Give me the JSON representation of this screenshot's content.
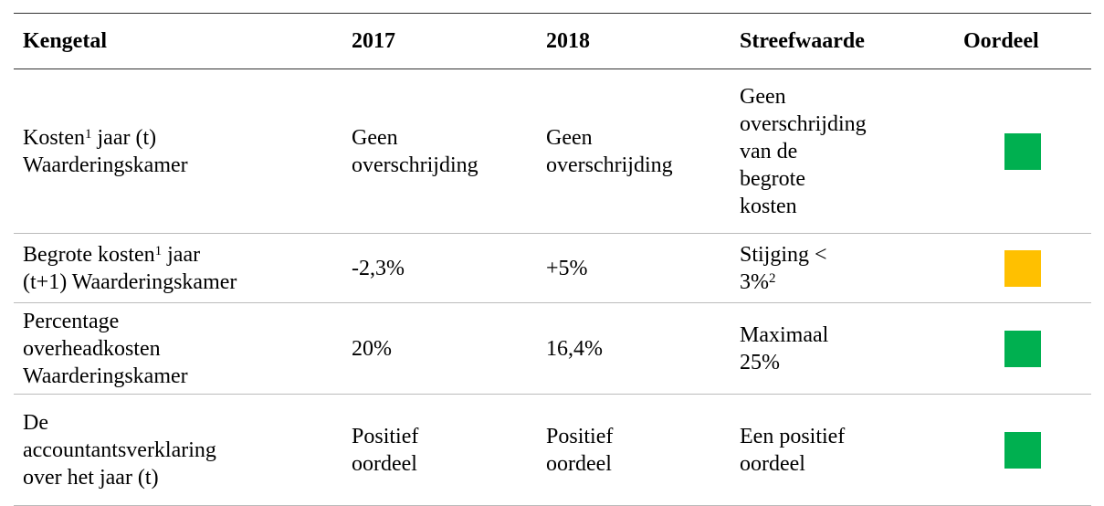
{
  "table": {
    "header": [
      "Kengetal",
      "2017",
      "2018",
      "Streefwaarde",
      "Oordeel"
    ],
    "rows": [
      {
        "cells": [
          [
            [
              {
                "t": "Kosten"
              },
              {
                "sup": "1"
              },
              {
                "t": " jaar (t)"
              }
            ],
            [
              {
                "t": "Waarderingskamer"
              }
            ]
          ],
          [
            [
              {
                "t": "Geen"
              }
            ],
            [
              {
                "t": "overschrijding"
              }
            ]
          ],
          [
            [
              {
                "t": "Geen"
              }
            ],
            [
              {
                "t": "overschrijding"
              }
            ]
          ],
          [
            [
              {
                "t": "Geen"
              }
            ],
            [
              {
                "t": "overschrijding"
              }
            ],
            [
              {
                "t": "van de"
              }
            ],
            [
              {
                "t": "begrote"
              }
            ],
            [
              {
                "t": "kosten"
              }
            ]
          ]
        ],
        "status_color": "#00b050"
      },
      {
        "cells": [
          [
            [
              {
                "t": "Begrote kosten"
              },
              {
                "sup": "1"
              },
              {
                "t": " jaar"
              }
            ],
            [
              {
                "t": "(t+1) Waarderingskamer"
              }
            ]
          ],
          [
            [
              {
                "t": "-2,3%"
              }
            ]
          ],
          [
            [
              {
                "t": "+5%"
              }
            ]
          ],
          [
            [
              {
                "t": "Stijging <"
              }
            ],
            [
              {
                "t": "3%"
              },
              {
                "sup": "2"
              }
            ]
          ]
        ],
        "status_color": "#ffc000"
      },
      {
        "cells": [
          [
            [
              {
                "t": "Percentage"
              }
            ],
            [
              {
                "t": "overheadkosten"
              }
            ],
            [
              {
                "t": "Waarderingskamer"
              }
            ]
          ],
          [
            [
              {
                "t": "20%"
              }
            ]
          ],
          [
            [
              {
                "t": "16,4%"
              }
            ]
          ],
          [
            [
              {
                "t": "Maximaal"
              }
            ],
            [
              {
                "t": "25%"
              }
            ]
          ]
        ],
        "status_color": "#00b050"
      },
      {
        "cells": [
          [
            [
              {
                "t": "De"
              }
            ],
            [
              {
                "t": "accountantsverklaring"
              }
            ],
            [
              {
                "t": "over het jaar (t)"
              }
            ]
          ],
          [
            [
              {
                "t": "Positief"
              }
            ],
            [
              {
                "t": "oordeel"
              }
            ]
          ],
          [
            [
              {
                "t": "Positief"
              }
            ],
            [
              {
                "t": "oordeel"
              }
            ]
          ],
          [
            [
              {
                "t": "Een positief"
              }
            ],
            [
              {
                "t": "oordeel"
              }
            ]
          ]
        ],
        "status_color": "#00b050"
      }
    ]
  }
}
